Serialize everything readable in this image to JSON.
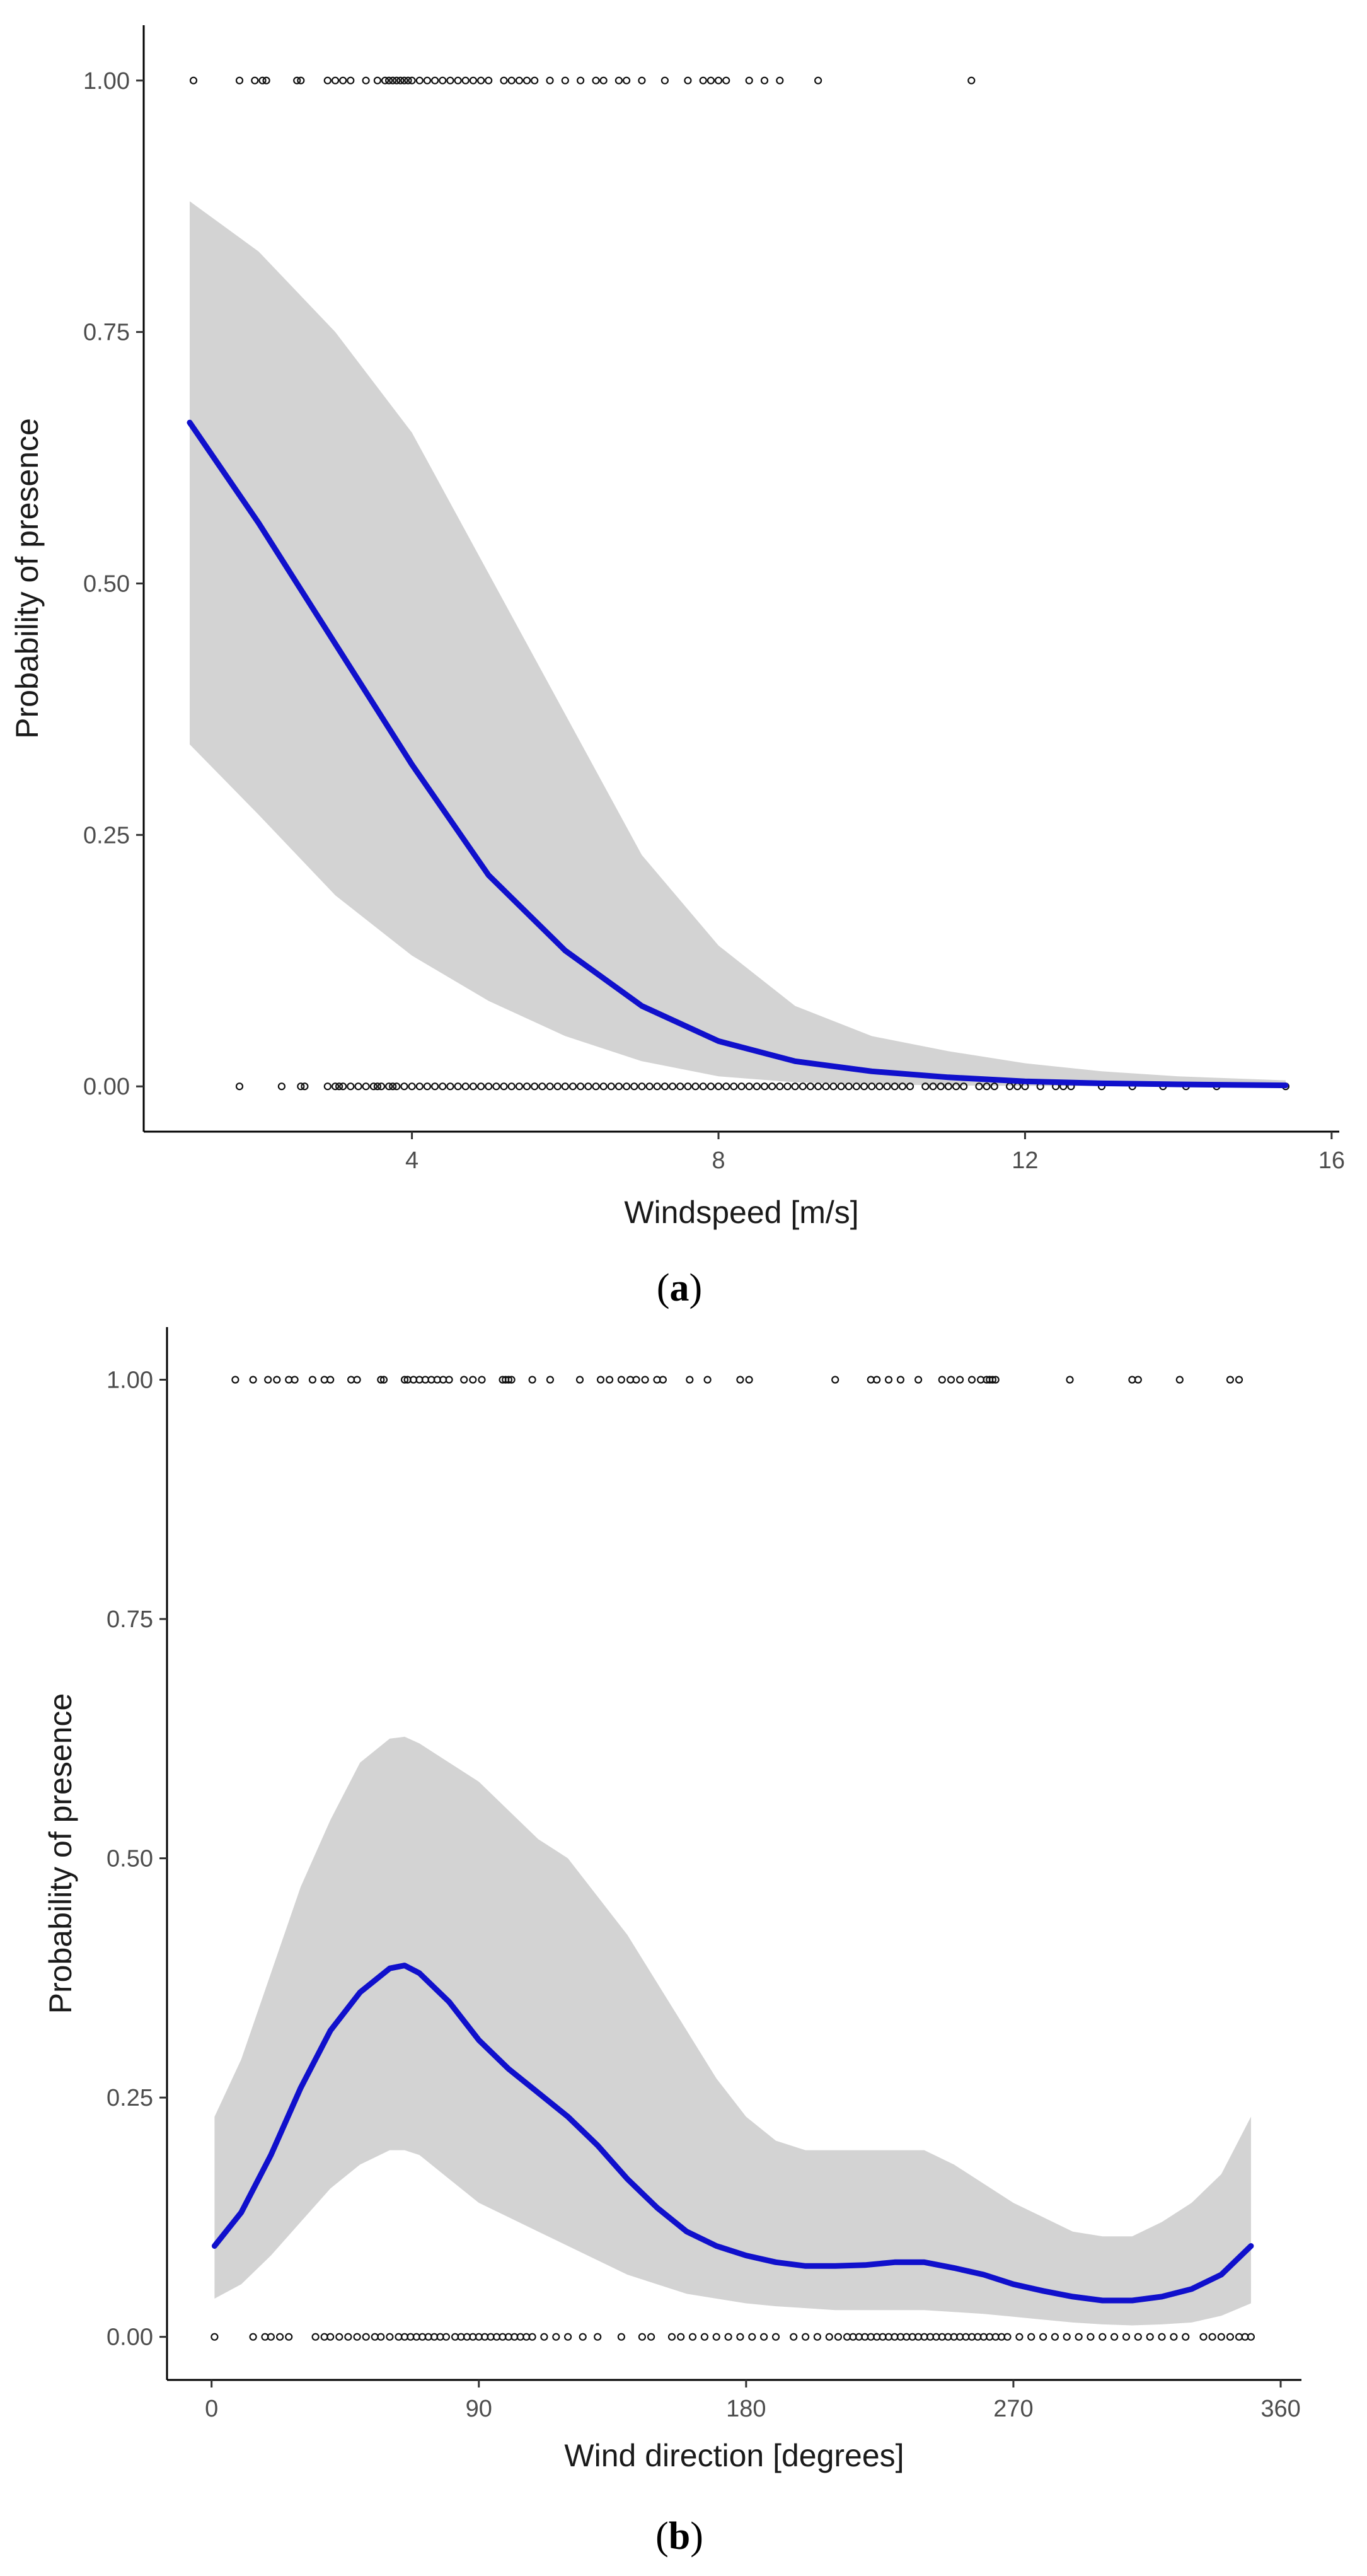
{
  "chart_data": [
    {
      "type": "scatter",
      "panel_label": "a",
      "title": "",
      "xlabel": "Windspeed [m/s]",
      "ylabel": "Probability of presence",
      "xlim": [
        0.5,
        16.1
      ],
      "ylim": [
        -0.045,
        1.055
      ],
      "xticks": [
        4,
        8,
        12,
        16
      ],
      "yticks": [
        0.0,
        0.25,
        0.5,
        0.75,
        1.0
      ],
      "ytick_labels": [
        "0.00",
        "0.25",
        "0.50",
        "0.75",
        "1.00"
      ],
      "grid": false,
      "fit_color": "#1010cc",
      "band_color": "#d3d3d3",
      "series": [
        {
          "name": "logistic fit",
          "x": [
            1.1,
            2,
            3,
            4,
            5,
            6,
            7,
            8,
            9,
            10,
            11,
            12,
            13,
            14,
            15.4
          ],
          "y": [
            0.66,
            0.56,
            0.44,
            0.32,
            0.21,
            0.135,
            0.08,
            0.045,
            0.025,
            0.015,
            0.009,
            0.005,
            0.003,
            0.002,
            0.001
          ]
        },
        {
          "name": "95% CI upper",
          "x": [
            1.1,
            2,
            3,
            4,
            5,
            6,
            7,
            8,
            9,
            10,
            11,
            12,
            13,
            14,
            15.4
          ],
          "y": [
            0.88,
            0.83,
            0.75,
            0.65,
            0.51,
            0.37,
            0.23,
            0.14,
            0.08,
            0.05,
            0.035,
            0.023,
            0.015,
            0.01,
            0.006
          ]
        },
        {
          "name": "95% CI lower",
          "x": [
            1.1,
            2,
            3,
            4,
            5,
            6,
            7,
            8,
            9,
            10,
            11,
            12,
            13,
            14,
            15.4
          ],
          "y": [
            0.34,
            0.27,
            0.19,
            0.13,
            0.085,
            0.05,
            0.025,
            0.01,
            0.004,
            0.002,
            0.001,
            0.0005,
            0.0003,
            0.0001,
            0.0
          ]
        },
        {
          "name": "presence",
          "y_value": 1.0,
          "x": [
            1.15,
            1.75,
            1.95,
            2.05,
            2.1,
            2.5,
            2.55,
            2.9,
            3.0,
            3.1,
            3.2,
            3.4,
            3.55,
            3.65,
            3.7,
            3.75,
            3.8,
            3.85,
            3.9,
            3.95,
            4.0,
            4.1,
            4.2,
            4.3,
            4.4,
            4.5,
            4.6,
            4.7,
            4.8,
            4.9,
            5.0,
            5.2,
            5.3,
            5.4,
            5.5,
            5.6,
            5.8,
            6.0,
            6.2,
            6.4,
            6.5,
            6.7,
            6.8,
            7.0,
            7.3,
            7.6,
            7.8,
            7.9,
            8.0,
            8.1,
            8.4,
            8.6,
            8.8,
            9.3,
            11.3
          ]
        },
        {
          "name": "absence",
          "y_value": 0.0,
          "x": [
            1.75,
            2.3,
            2.55,
            2.6,
            2.9,
            3.0,
            3.05,
            3.1,
            3.2,
            3.3,
            3.4,
            3.5,
            3.55,
            3.6,
            3.7,
            3.75,
            3.8,
            3.9,
            4.0,
            4.1,
            4.2,
            4.3,
            4.4,
            4.5,
            4.6,
            4.7,
            4.8,
            4.9,
            5.0,
            5.1,
            5.2,
            5.3,
            5.4,
            5.5,
            5.6,
            5.7,
            5.8,
            5.9,
            6.0,
            6.1,
            6.2,
            6.3,
            6.4,
            6.5,
            6.6,
            6.7,
            6.8,
            6.9,
            7.0,
            7.1,
            7.2,
            7.3,
            7.4,
            7.5,
            7.6,
            7.7,
            7.8,
            7.9,
            8.0,
            8.1,
            8.2,
            8.3,
            8.4,
            8.5,
            8.6,
            8.7,
            8.8,
            8.9,
            9.0,
            9.1,
            9.2,
            9.3,
            9.4,
            9.5,
            9.6,
            9.7,
            9.8,
            9.9,
            10.0,
            10.1,
            10.2,
            10.3,
            10.4,
            10.5,
            10.7,
            10.8,
            10.9,
            11.0,
            11.1,
            11.2,
            11.4,
            11.5,
            11.6,
            11.8,
            11.9,
            12.0,
            12.2,
            12.4,
            12.5,
            12.6,
            13.0,
            13.4,
            13.8,
            14.1,
            14.5,
            15.4
          ]
        }
      ]
    },
    {
      "type": "scatter",
      "panel_label": "b",
      "title": "",
      "xlabel": "Wind direction [degrees]",
      "ylabel": "Probability of presence",
      "xlim": [
        -15,
        367
      ],
      "ylim": [
        -0.045,
        1.055
      ],
      "xticks": [
        0,
        90,
        180,
        270,
        360
      ],
      "yticks": [
        0.0,
        0.25,
        0.5,
        0.75,
        1.0
      ],
      "ytick_labels": [
        "0.00",
        "0.25",
        "0.50",
        "0.75",
        "1.00"
      ],
      "grid": false,
      "fit_color": "#1010cc",
      "band_color": "#d3d3d3",
      "series": [
        {
          "name": "GAM fit",
          "x": [
            1,
            10,
            20,
            30,
            40,
            50,
            60,
            65,
            70,
            80,
            90,
            100,
            110,
            120,
            130,
            140,
            150,
            160,
            170,
            180,
            190,
            200,
            210,
            220,
            230,
            240,
            250,
            260,
            270,
            280,
            290,
            300,
            310,
            320,
            330,
            340,
            350
          ],
          "y": [
            0.095,
            0.13,
            0.19,
            0.26,
            0.32,
            0.36,
            0.385,
            0.388,
            0.38,
            0.35,
            0.31,
            0.28,
            0.255,
            0.23,
            0.2,
            0.165,
            0.135,
            0.11,
            0.095,
            0.085,
            0.078,
            0.074,
            0.074,
            0.075,
            0.078,
            0.078,
            0.072,
            0.065,
            0.055,
            0.048,
            0.042,
            0.038,
            0.038,
            0.042,
            0.05,
            0.065,
            0.095
          ]
        },
        {
          "name": "95% CI upper",
          "x": [
            1,
            10,
            20,
            30,
            40,
            50,
            60,
            65,
            70,
            80,
            90,
            100,
            110,
            120,
            130,
            140,
            150,
            160,
            170,
            180,
            190,
            200,
            210,
            220,
            230,
            240,
            250,
            260,
            270,
            280,
            290,
            300,
            310,
            320,
            330,
            340,
            350
          ],
          "y": [
            0.23,
            0.29,
            0.38,
            0.47,
            0.54,
            0.6,
            0.625,
            0.627,
            0.62,
            0.6,
            0.58,
            0.55,
            0.52,
            0.5,
            0.46,
            0.42,
            0.37,
            0.32,
            0.27,
            0.23,
            0.205,
            0.195,
            0.195,
            0.195,
            0.195,
            0.195,
            0.18,
            0.16,
            0.14,
            0.125,
            0.11,
            0.105,
            0.105,
            0.12,
            0.14,
            0.17,
            0.23
          ]
        },
        {
          "name": "95% CI lower",
          "x": [
            1,
            10,
            20,
            30,
            40,
            50,
            60,
            65,
            70,
            80,
            90,
            100,
            110,
            120,
            130,
            140,
            150,
            160,
            170,
            180,
            190,
            200,
            210,
            220,
            230,
            240,
            250,
            260,
            270,
            280,
            290,
            300,
            310,
            320,
            330,
            340,
            350
          ],
          "y": [
            0.04,
            0.055,
            0.085,
            0.12,
            0.155,
            0.18,
            0.195,
            0.195,
            0.19,
            0.165,
            0.14,
            0.125,
            0.11,
            0.095,
            0.08,
            0.065,
            0.055,
            0.045,
            0.04,
            0.035,
            0.032,
            0.03,
            0.028,
            0.028,
            0.028,
            0.028,
            0.026,
            0.024,
            0.021,
            0.018,
            0.015,
            0.013,
            0.012,
            0.013,
            0.015,
            0.022,
            0.035
          ]
        },
        {
          "name": "presence",
          "y_value": 1.0,
          "x": [
            8,
            14,
            19,
            22,
            26,
            28,
            34,
            38,
            40,
            47,
            49,
            57,
            58,
            65,
            66,
            68,
            70,
            72,
            74,
            76,
            78,
            80,
            85,
            88,
            91,
            98,
            99,
            100,
            101,
            108,
            114,
            124,
            131,
            134,
            138,
            141,
            143,
            146,
            150,
            152,
            161,
            167,
            178,
            181,
            210,
            222,
            224,
            228,
            232,
            238,
            246,
            249,
            252,
            256,
            259,
            261,
            262,
            263,
            264,
            289,
            310,
            312,
            326,
            343,
            346
          ]
        },
        {
          "name": "absence",
          "y_value": 0.0,
          "x": [
            1,
            14,
            18,
            20,
            23,
            26,
            35,
            38,
            40,
            43,
            46,
            49,
            52,
            55,
            57,
            60,
            63,
            65,
            67,
            69,
            71,
            73,
            75,
            77,
            79,
            82,
            84,
            86,
            88,
            90,
            92,
            94,
            96,
            98,
            100,
            102,
            104,
            106,
            108,
            112,
            116,
            120,
            125,
            130,
            138,
            145,
            148,
            155,
            158,
            162,
            166,
            170,
            174,
            178,
            182,
            186,
            190,
            196,
            200,
            204,
            208,
            211,
            214,
            216,
            218,
            220,
            222,
            224,
            226,
            228,
            230,
            232,
            234,
            236,
            238,
            240,
            242,
            244,
            246,
            248,
            250,
            252,
            254,
            256,
            258,
            260,
            262,
            264,
            266,
            268,
            272,
            276,
            280,
            284,
            288,
            292,
            296,
            300,
            304,
            308,
            312,
            316,
            320,
            324,
            328,
            334,
            337,
            340,
            343,
            346,
            348,
            350
          ]
        }
      ]
    }
  ]
}
